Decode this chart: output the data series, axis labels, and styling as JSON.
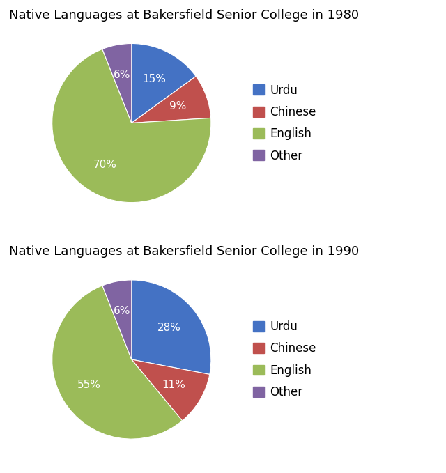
{
  "charts": [
    {
      "title": "Native Languages at Bakersfield Senior College in 1980",
      "labels": [
        "Urdu",
        "Chinese",
        "English",
        "Other"
      ],
      "values": [
        15,
        9,
        70,
        6
      ],
      "colors": [
        "#4472C4",
        "#C0504D",
        "#9BBB59",
        "#8064A2"
      ],
      "pct_labels": [
        "15%",
        "9%",
        "70%",
        "6%"
      ],
      "startangle": 90
    },
    {
      "title": "Native Languages at Bakersfield Senior College in 1990",
      "labels": [
        "Urdu",
        "Chinese",
        "English",
        "Other"
      ],
      "values": [
        28,
        11,
        55,
        6
      ],
      "colors": [
        "#4472C4",
        "#C0504D",
        "#9BBB59",
        "#8064A2"
      ],
      "pct_labels": [
        "28%",
        "11%",
        "55%",
        "6%"
      ],
      "startangle": 90
    }
  ],
  "legend_labels": [
    "Urdu",
    "Chinese",
    "English",
    "Other"
  ],
  "legend_colors": [
    "#4472C4",
    "#C0504D",
    "#9BBB59",
    "#8064A2"
  ],
  "title_fontsize": 13,
  "label_fontsize": 11,
  "legend_fontsize": 12,
  "legend_marker_size": 10,
  "bg_color": "#FFFFFF"
}
